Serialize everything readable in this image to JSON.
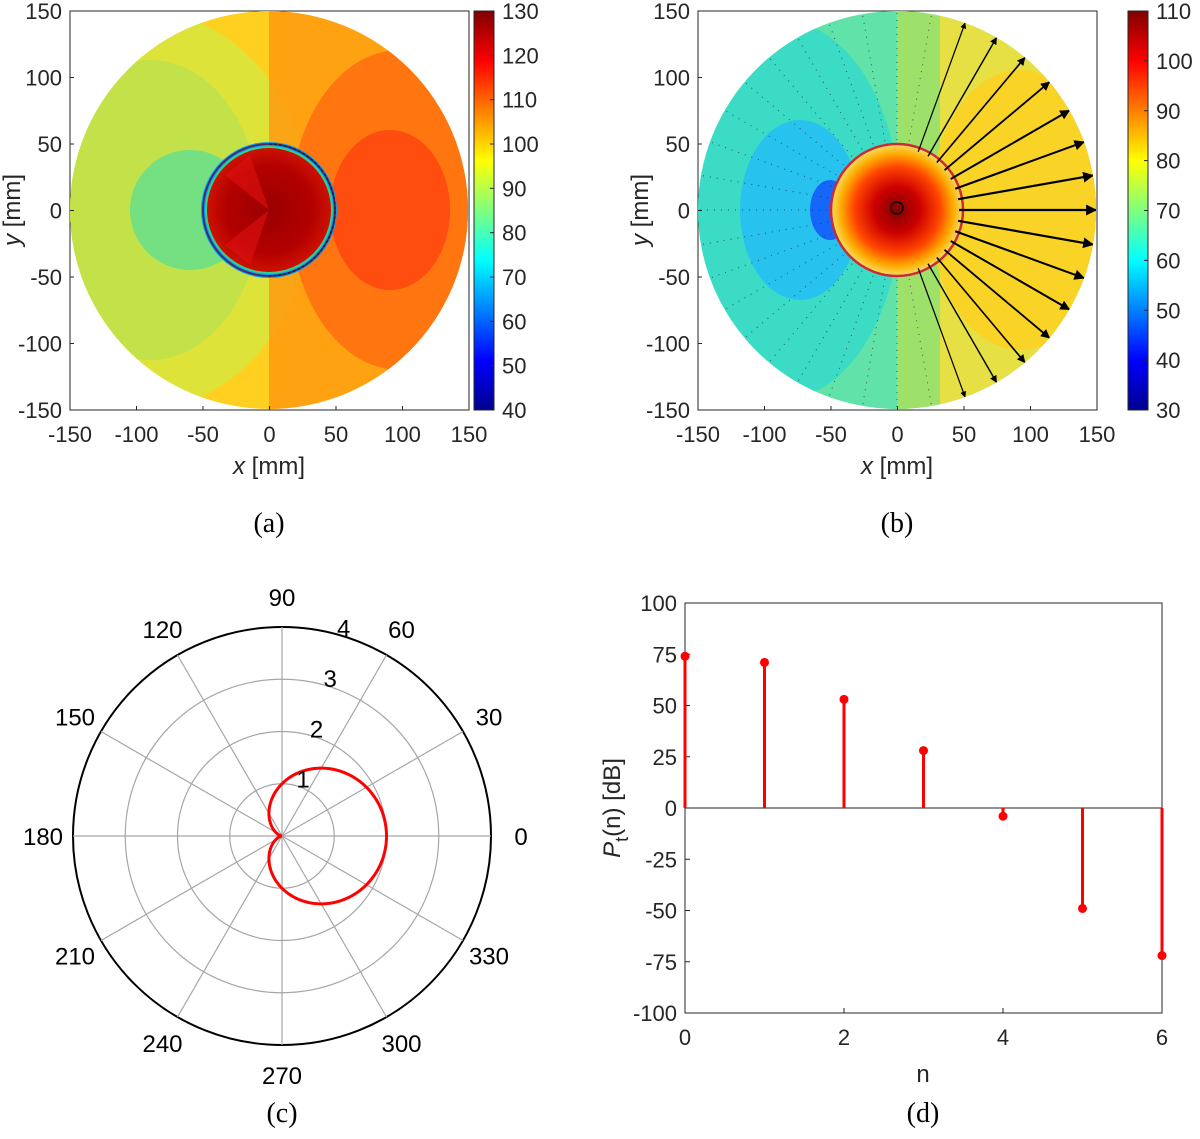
{
  "colors": {
    "stem": "#ff0000",
    "polar_curve": "#ff0000",
    "boundary_circle": "#cc2a3a",
    "polar_grid": "#a6a6a6",
    "axis": "#262626"
  },
  "chart_data": [
    {
      "id": "a",
      "type": "heatmap",
      "caption": "(a)",
      "xlabel_var": "x",
      "xlabel_unit": " [mm]",
      "ylabel_var": "y",
      "ylabel_unit": " [mm]",
      "xlim": [
        -150,
        150
      ],
      "ylim": [
        -150,
        150
      ],
      "xticks": [
        -150,
        -100,
        -50,
        0,
        50,
        100,
        150
      ],
      "yticks": [
        -150,
        -100,
        -50,
        0,
        50,
        100,
        150
      ],
      "colorbar": {
        "min": 40,
        "max": 130,
        "ticks": [
          40,
          50,
          60,
          70,
          80,
          90,
          100,
          110,
          120,
          130
        ]
      },
      "domain_radius": 150,
      "inner_circle_radius": 50,
      "colormap": "jet"
    },
    {
      "id": "b",
      "type": "heatmap",
      "caption": "(b)",
      "xlabel_var": "x",
      "xlabel_unit": " [mm]",
      "ylabel_var": "y",
      "ylabel_unit": " [mm]",
      "xlim": [
        -150,
        150
      ],
      "ylim": [
        -150,
        150
      ],
      "xticks": [
        -150,
        -100,
        -50,
        0,
        50,
        100,
        150
      ],
      "yticks": [
        -150,
        -100,
        -50,
        0,
        50,
        100,
        150
      ],
      "colorbar": {
        "min": 30,
        "max": 110,
        "ticks": [
          30,
          40,
          50,
          60,
          70,
          80,
          90,
          100,
          110
        ]
      },
      "domain_radius": 150,
      "inner_circle_radius": 50,
      "colormap": "jet",
      "overlay": "intensity vectors"
    },
    {
      "id": "c",
      "type": "polar",
      "caption": "(c)",
      "rlim": [
        0,
        4
      ],
      "rticks": [
        1,
        2,
        3,
        4
      ],
      "thetaticks": [
        0,
        30,
        60,
        90,
        120,
        150,
        180,
        210,
        240,
        270,
        300,
        330
      ],
      "curve": {
        "form": "r = 1 + cos(theta)",
        "max_r": 2
      }
    },
    {
      "id": "d",
      "type": "stem",
      "caption": "(d)",
      "xlabel": "n",
      "ylabel_main": "P",
      "ylabel_sub": "t",
      "ylabel_rest": "(n) [dB]",
      "xlim": [
        0,
        6
      ],
      "ylim": [
        -100,
        100
      ],
      "xticks": [
        0,
        2,
        4,
        6
      ],
      "yticks": [
        -100,
        -75,
        -50,
        -25,
        0,
        25,
        50,
        75,
        100
      ],
      "x": [
        0,
        1,
        2,
        3,
        4,
        5,
        6
      ],
      "y": [
        74,
        71,
        53,
        28,
        -4,
        -49,
        -72
      ]
    }
  ]
}
